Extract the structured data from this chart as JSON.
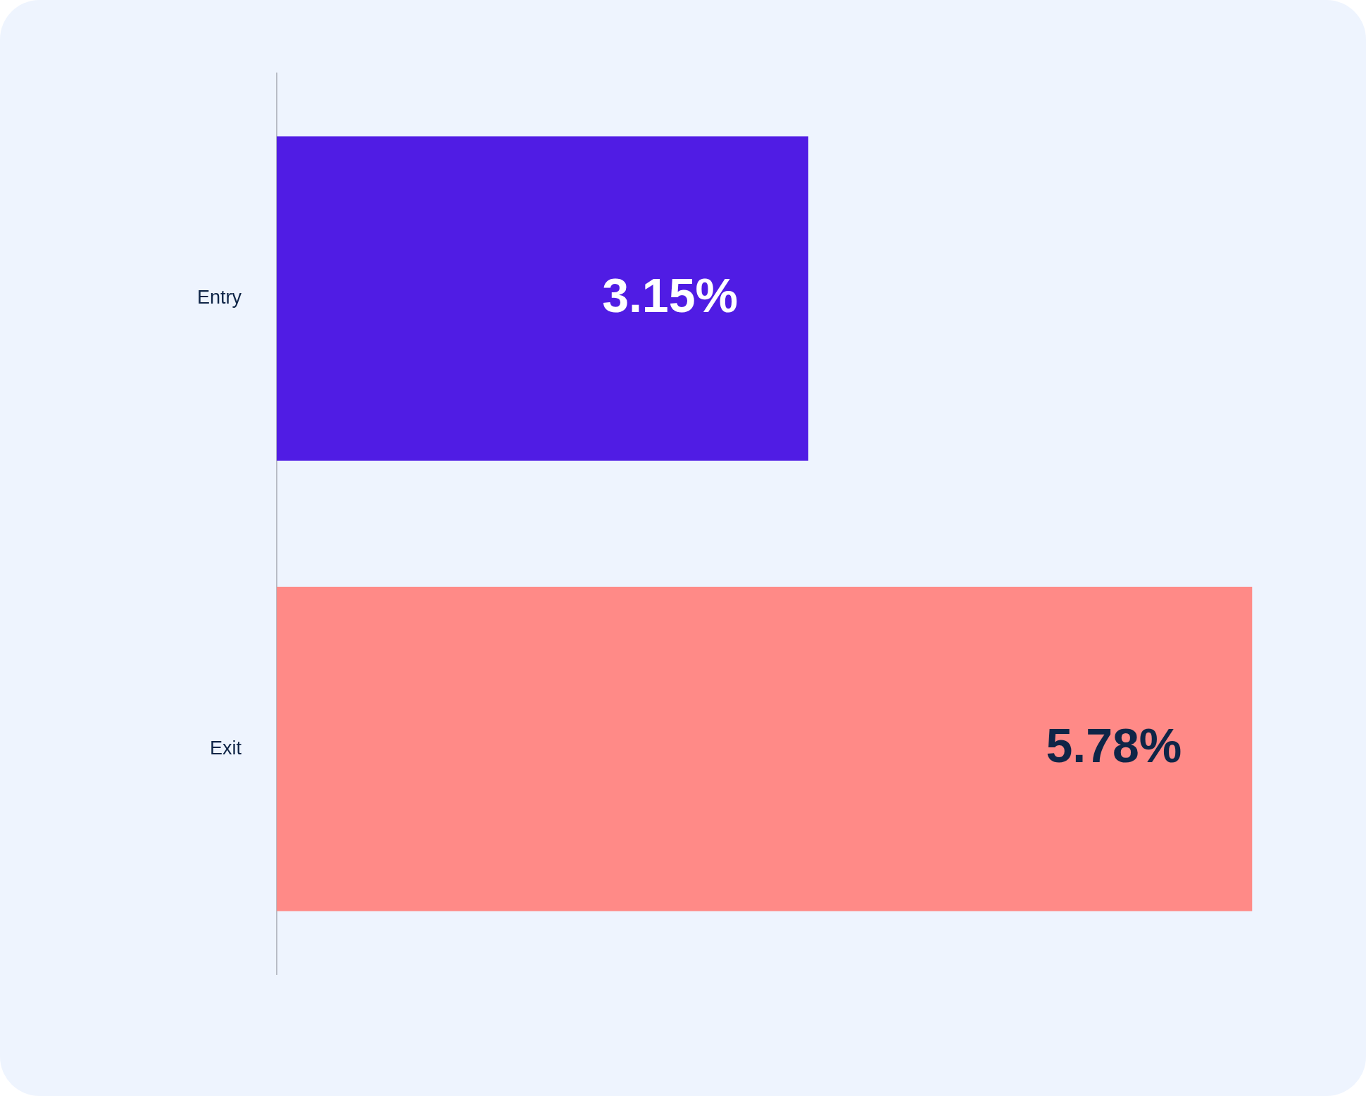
{
  "chart_data": {
    "type": "bar",
    "orientation": "horizontal",
    "categories": [
      "Entry",
      "Exit"
    ],
    "values": [
      3.15,
      5.78
    ],
    "colors": [
      "#501ce4",
      "#ff8a87"
    ],
    "value_labels": [
      "3.15%",
      "5.78%"
    ]
  }
}
